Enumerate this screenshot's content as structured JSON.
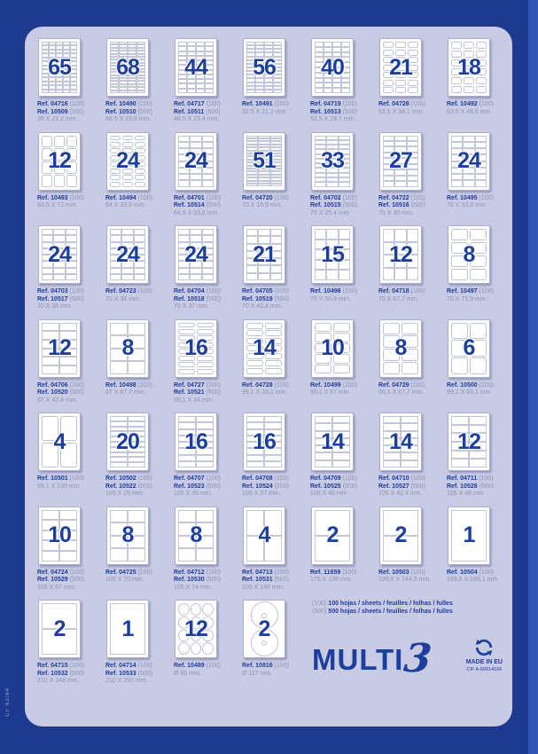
{
  "page": {
    "bg": "#1e3a8e",
    "panel_bg": "#c9cae4",
    "accent": "#1c3e9c",
    "muted": "#8d94b9"
  },
  "side_text": "CF 62/64",
  "labels": {
    "ref_label": "Ref."
  },
  "legend": {
    "l1_qty": "(100)",
    "l1_text": "100 hojas / sheets / feuilles / folhas / fulles",
    "l2_qty": "(500)",
    "l2_text": "500 hojas / sheets / feuilles / folhas / fulles"
  },
  "brand": {
    "name": "MULTI",
    "numeral": "3",
    "made_in": "MADE IN EU",
    "cif": "CIF A-60914166",
    "recycle_icon": "recycle-arrows-icon"
  },
  "cards": [
    {
      "num": "65",
      "refs": [
        [
          "04716",
          "(100)"
        ],
        [
          "10509",
          "(500)"
        ]
      ],
      "dims": "38 X 21,2 mm.",
      "type": "grid",
      "cols": 5,
      "rows": 13
    },
    {
      "num": "68",
      "refs": [
        [
          "10490",
          "(100)"
        ],
        [
          "10510",
          "(500)"
        ]
      ],
      "dims": "48,5 X 16,9 mm.",
      "type": "grid",
      "cols": 4,
      "rows": 17
    },
    {
      "num": "44",
      "refs": [
        [
          "04717",
          "(100)"
        ],
        [
          "10511",
          "(500)"
        ]
      ],
      "dims": "48,5 X 25,4 mm.",
      "type": "grid",
      "cols": 4,
      "rows": 11
    },
    {
      "num": "56",
      "refs": [
        [
          "10491",
          "(100)"
        ]
      ],
      "dims": "52,5 X 21,2 mm.",
      "type": "grid",
      "cols": 4,
      "rows": 14
    },
    {
      "num": "40",
      "refs": [
        [
          "04719",
          "(100)"
        ],
        [
          "10513",
          "(500)"
        ]
      ],
      "dims": "52,5 X 29,7 mm.",
      "type": "grid",
      "cols": 4,
      "rows": 10
    },
    {
      "num": "21",
      "refs": [
        [
          "04726",
          "(100)"
        ]
      ],
      "dims": "63,5 X 38,1 mm.",
      "type": "rounded",
      "cols": 3,
      "rows": 7
    },
    {
      "num": "18",
      "refs": [
        [
          "10492",
          "(100)"
        ]
      ],
      "dims": "63,5 X 46,6 mm.",
      "type": "rounded",
      "cols": 3,
      "rows": 6
    },
    {
      "num": "12",
      "refs": [
        [
          "10493",
          "(100)"
        ]
      ],
      "dims": "63,5 X 72 mm.",
      "type": "rounded",
      "cols": 3,
      "rows": 4
    },
    {
      "num": "24",
      "refs": [
        [
          "10494",
          "(100)"
        ]
      ],
      "dims": "64 X 33,9 mm.",
      "type": "rounded",
      "cols": 3,
      "rows": 8
    },
    {
      "num": "24",
      "refs": [
        [
          "04701",
          "(100)"
        ],
        [
          "10514",
          "(500)"
        ]
      ],
      "dims": "64,6 X 33,8 mm.",
      "type": "grid",
      "cols": 3,
      "rows": 8
    },
    {
      "num": "51",
      "refs": [
        [
          "04720",
          "(100)"
        ]
      ],
      "dims": "70 X 16,9 mm.",
      "type": "grid",
      "cols": 3,
      "rows": 17
    },
    {
      "num": "33",
      "refs": [
        [
          "04702",
          "(100)"
        ],
        [
          "10515",
          "(500)"
        ]
      ],
      "dims": "70 X 25,4 mm.",
      "type": "grid",
      "cols": 3,
      "rows": 11
    },
    {
      "num": "27",
      "refs": [
        [
          "04722",
          "(100)"
        ],
        [
          "10516",
          "(500)"
        ]
      ],
      "dims": "70 X 30 mm.",
      "type": "grid",
      "cols": 3,
      "rows": 9
    },
    {
      "num": "24",
      "refs": [
        [
          "10495",
          "(100)"
        ]
      ],
      "dims": "70 X 33,8 mm.",
      "type": "grid",
      "cols": 3,
      "rows": 8
    },
    {
      "num": "24",
      "refs": [
        [
          "04703",
          "(100)"
        ],
        [
          "10517",
          "(500)"
        ]
      ],
      "dims": "70 X 35 mm.",
      "type": "grid",
      "cols": 3,
      "rows": 8
    },
    {
      "num": "24",
      "refs": [
        [
          "04723",
          "(100)"
        ]
      ],
      "dims": "70 X 36 mm.",
      "type": "grid",
      "cols": 3,
      "rows": 8
    },
    {
      "num": "24",
      "refs": [
        [
          "04704",
          "(100)"
        ],
        [
          "10518",
          "(500)"
        ]
      ],
      "dims": "70 X 37 mm.",
      "type": "grid",
      "cols": 3,
      "rows": 8
    },
    {
      "num": "21",
      "refs": [
        [
          "04705",
          "(100)"
        ],
        [
          "10519",
          "(500)"
        ]
      ],
      "dims": "70 X 42,4 mm.",
      "type": "grid",
      "cols": 3,
      "rows": 7
    },
    {
      "num": "15",
      "refs": [
        [
          "10496",
          "(100)"
        ]
      ],
      "dims": "70 X 50,8 mm.",
      "type": "grid",
      "cols": 3,
      "rows": 5
    },
    {
      "num": "12",
      "refs": [
        [
          "04718",
          "(100)"
        ]
      ],
      "dims": "70 X 67,7 mm.",
      "type": "grid",
      "cols": 3,
      "rows": 4
    },
    {
      "num": "8",
      "refs": [
        [
          "10497",
          "(100)"
        ]
      ],
      "dims": "70 X 71,9 mm.",
      "type": "rounded",
      "cols": 2,
      "rows": 4
    },
    {
      "num": "12",
      "refs": [
        [
          "04706",
          "(100)"
        ],
        [
          "10520",
          "(500)"
        ]
      ],
      "dims": "97 X 42,4 mm.",
      "type": "grid",
      "cols": 2,
      "rows": 6
    },
    {
      "num": "8",
      "refs": [
        [
          "10498",
          "(100)"
        ]
      ],
      "dims": "97 X 67,7 mm.",
      "type": "grid",
      "cols": 2,
      "rows": 4
    },
    {
      "num": "16",
      "refs": [
        [
          "04727",
          "(100)"
        ],
        [
          "10521",
          "(500)"
        ]
      ],
      "dims": "99,1 X 34 mm.",
      "type": "rounded",
      "cols": 2,
      "rows": 8
    },
    {
      "num": "14",
      "refs": [
        [
          "04728",
          "(100)"
        ]
      ],
      "dims": "99,1 X 38,1 mm.",
      "type": "rounded",
      "cols": 2,
      "rows": 7
    },
    {
      "num": "10",
      "refs": [
        [
          "10499",
          "(100)"
        ]
      ],
      "dims": "99,1 X 57 mm.",
      "type": "rounded",
      "cols": 2,
      "rows": 5
    },
    {
      "num": "8",
      "refs": [
        [
          "04729",
          "(100)"
        ]
      ],
      "dims": "99,1 X 67,7 mm.",
      "type": "rounded",
      "cols": 2,
      "rows": 4
    },
    {
      "num": "6",
      "refs": [
        [
          "10500",
          "(100)"
        ]
      ],
      "dims": "99,1 X 93,1 mm.",
      "type": "rounded",
      "cols": 2,
      "rows": 3
    },
    {
      "num": "4",
      "refs": [
        [
          "10501",
          "(100)"
        ]
      ],
      "dims": "99,1 X 139 mm.",
      "type": "rounded",
      "cols": 2,
      "rows": 2
    },
    {
      "num": "20",
      "refs": [
        [
          "10502",
          "(100)"
        ],
        [
          "10522",
          "(500)"
        ]
      ],
      "dims": "105 X 29 mm.",
      "type": "grid",
      "cols": 2,
      "rows": 10
    },
    {
      "num": "16",
      "refs": [
        [
          "04707",
          "(100)"
        ],
        [
          "10523",
          "(500)"
        ]
      ],
      "dims": "105 X 35 mm.",
      "type": "grid",
      "cols": 2,
      "rows": 8
    },
    {
      "num": "16",
      "refs": [
        [
          "04708",
          "(100)"
        ],
        [
          "10524",
          "(500)"
        ]
      ],
      "dims": "105 X 37 mm.",
      "type": "grid",
      "cols": 2,
      "rows": 8
    },
    {
      "num": "14",
      "refs": [
        [
          "04709",
          "(100)"
        ],
        [
          "10525",
          "(500)"
        ]
      ],
      "dims": "105 X 40 mm.",
      "type": "grid",
      "cols": 2,
      "rows": 7
    },
    {
      "num": "14",
      "refs": [
        [
          "04710",
          "(100)"
        ],
        [
          "10527",
          "(500)"
        ]
      ],
      "dims": "105 X 42,4 mm.",
      "type": "grid",
      "cols": 2,
      "rows": 7
    },
    {
      "num": "12",
      "refs": [
        [
          "04711",
          "(100)"
        ],
        [
          "10528",
          "(500)"
        ]
      ],
      "dims": "105 X 48 mm.",
      "type": "grid",
      "cols": 2,
      "rows": 6
    },
    {
      "num": "10",
      "refs": [
        [
          "04724",
          "(100)"
        ],
        [
          "10529",
          "(500)"
        ]
      ],
      "dims": "105 X 57 mm.",
      "type": "grid",
      "cols": 2,
      "rows": 5
    },
    {
      "num": "8",
      "refs": [
        [
          "04725",
          "(100)"
        ]
      ],
      "dims": "105 X 70 mm.",
      "type": "grid",
      "cols": 2,
      "rows": 4
    },
    {
      "num": "8",
      "refs": [
        [
          "04712",
          "(100)"
        ],
        [
          "10530",
          "(500)"
        ]
      ],
      "dims": "105 X 74 mm.",
      "type": "grid",
      "cols": 2,
      "rows": 4
    },
    {
      "num": "4",
      "refs": [
        [
          "04713",
          "(100)"
        ],
        [
          "10531",
          "(500)"
        ]
      ],
      "dims": "105 X 148 mm.",
      "type": "grid",
      "cols": 2,
      "rows": 2
    },
    {
      "num": "2",
      "refs": [
        [
          "11659",
          "(100)"
        ]
      ],
      "dims": "175 X 135 mm.",
      "type": "grid",
      "cols": 1,
      "rows": 2
    },
    {
      "num": "2",
      "refs": [
        [
          "10503",
          "(100)"
        ]
      ],
      "dims": "199,6 X 144,5 mm.",
      "type": "grid",
      "cols": 1,
      "rows": 2
    },
    {
      "num": "1",
      "refs": [
        [
          "10504",
          "(100)"
        ]
      ],
      "dims": "199,6 X 289,1 mm.",
      "type": "grid",
      "cols": 1,
      "rows": 1
    },
    {
      "num": "2",
      "refs": [
        [
          "04715",
          "(100)"
        ],
        [
          "10532",
          "(500)"
        ]
      ],
      "dims": "210 X 148 mm.",
      "type": "grid",
      "cols": 1,
      "rows": 2
    },
    {
      "num": "1",
      "refs": [
        [
          "04714",
          "(100)"
        ],
        [
          "10533",
          "(500)"
        ]
      ],
      "dims": "210 X 297 mm.",
      "type": "grid",
      "cols": 1,
      "rows": 1
    },
    {
      "num": "12",
      "refs": [
        [
          "10489",
          "(100)"
        ]
      ],
      "dims": "Ø 60 mm.",
      "type": "circles",
      "cols": 3,
      "rows": 4
    },
    {
      "num": "2",
      "refs": [
        [
          "10816",
          "(100)"
        ]
      ],
      "dims": "Ø 117 mm.",
      "type": "cd",
      "cols": 1,
      "rows": 2
    }
  ]
}
